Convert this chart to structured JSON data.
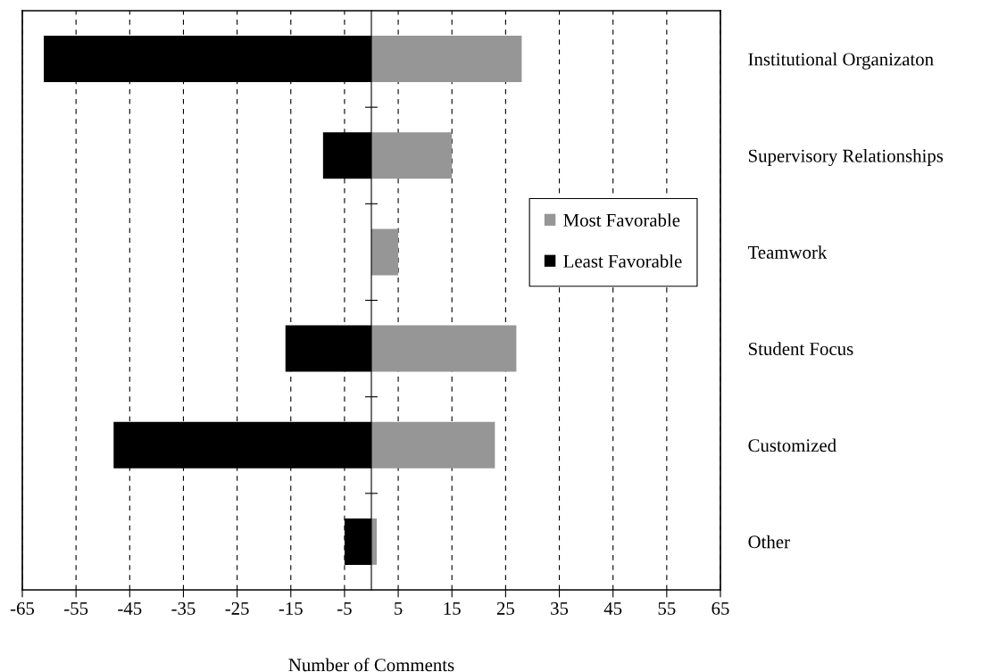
{
  "chart_data": {
    "type": "bar",
    "orientation": "horizontal",
    "xlabel": "Number of Comments",
    "categories": [
      "Institutional Organizaton",
      "Supervisory Relationships",
      "Teamwork",
      "Student Focus",
      "Customized",
      "Other"
    ],
    "series": [
      {
        "name": "Most Favorable",
        "color": "#969696",
        "values": [
          28,
          15,
          5,
          27,
          23,
          1
        ]
      },
      {
        "name": "Least Favorable",
        "color": "#000000",
        "values": [
          -61,
          -9,
          null,
          -16,
          -48,
          -5
        ]
      }
    ],
    "xlim": [
      -65,
      65
    ],
    "xticks": [
      -65,
      -55,
      -45,
      -35,
      -25,
      -15,
      -5,
      5,
      15,
      25,
      35,
      45,
      55,
      65
    ],
    "stacked": true,
    "grid": "x",
    "legend": "right"
  }
}
